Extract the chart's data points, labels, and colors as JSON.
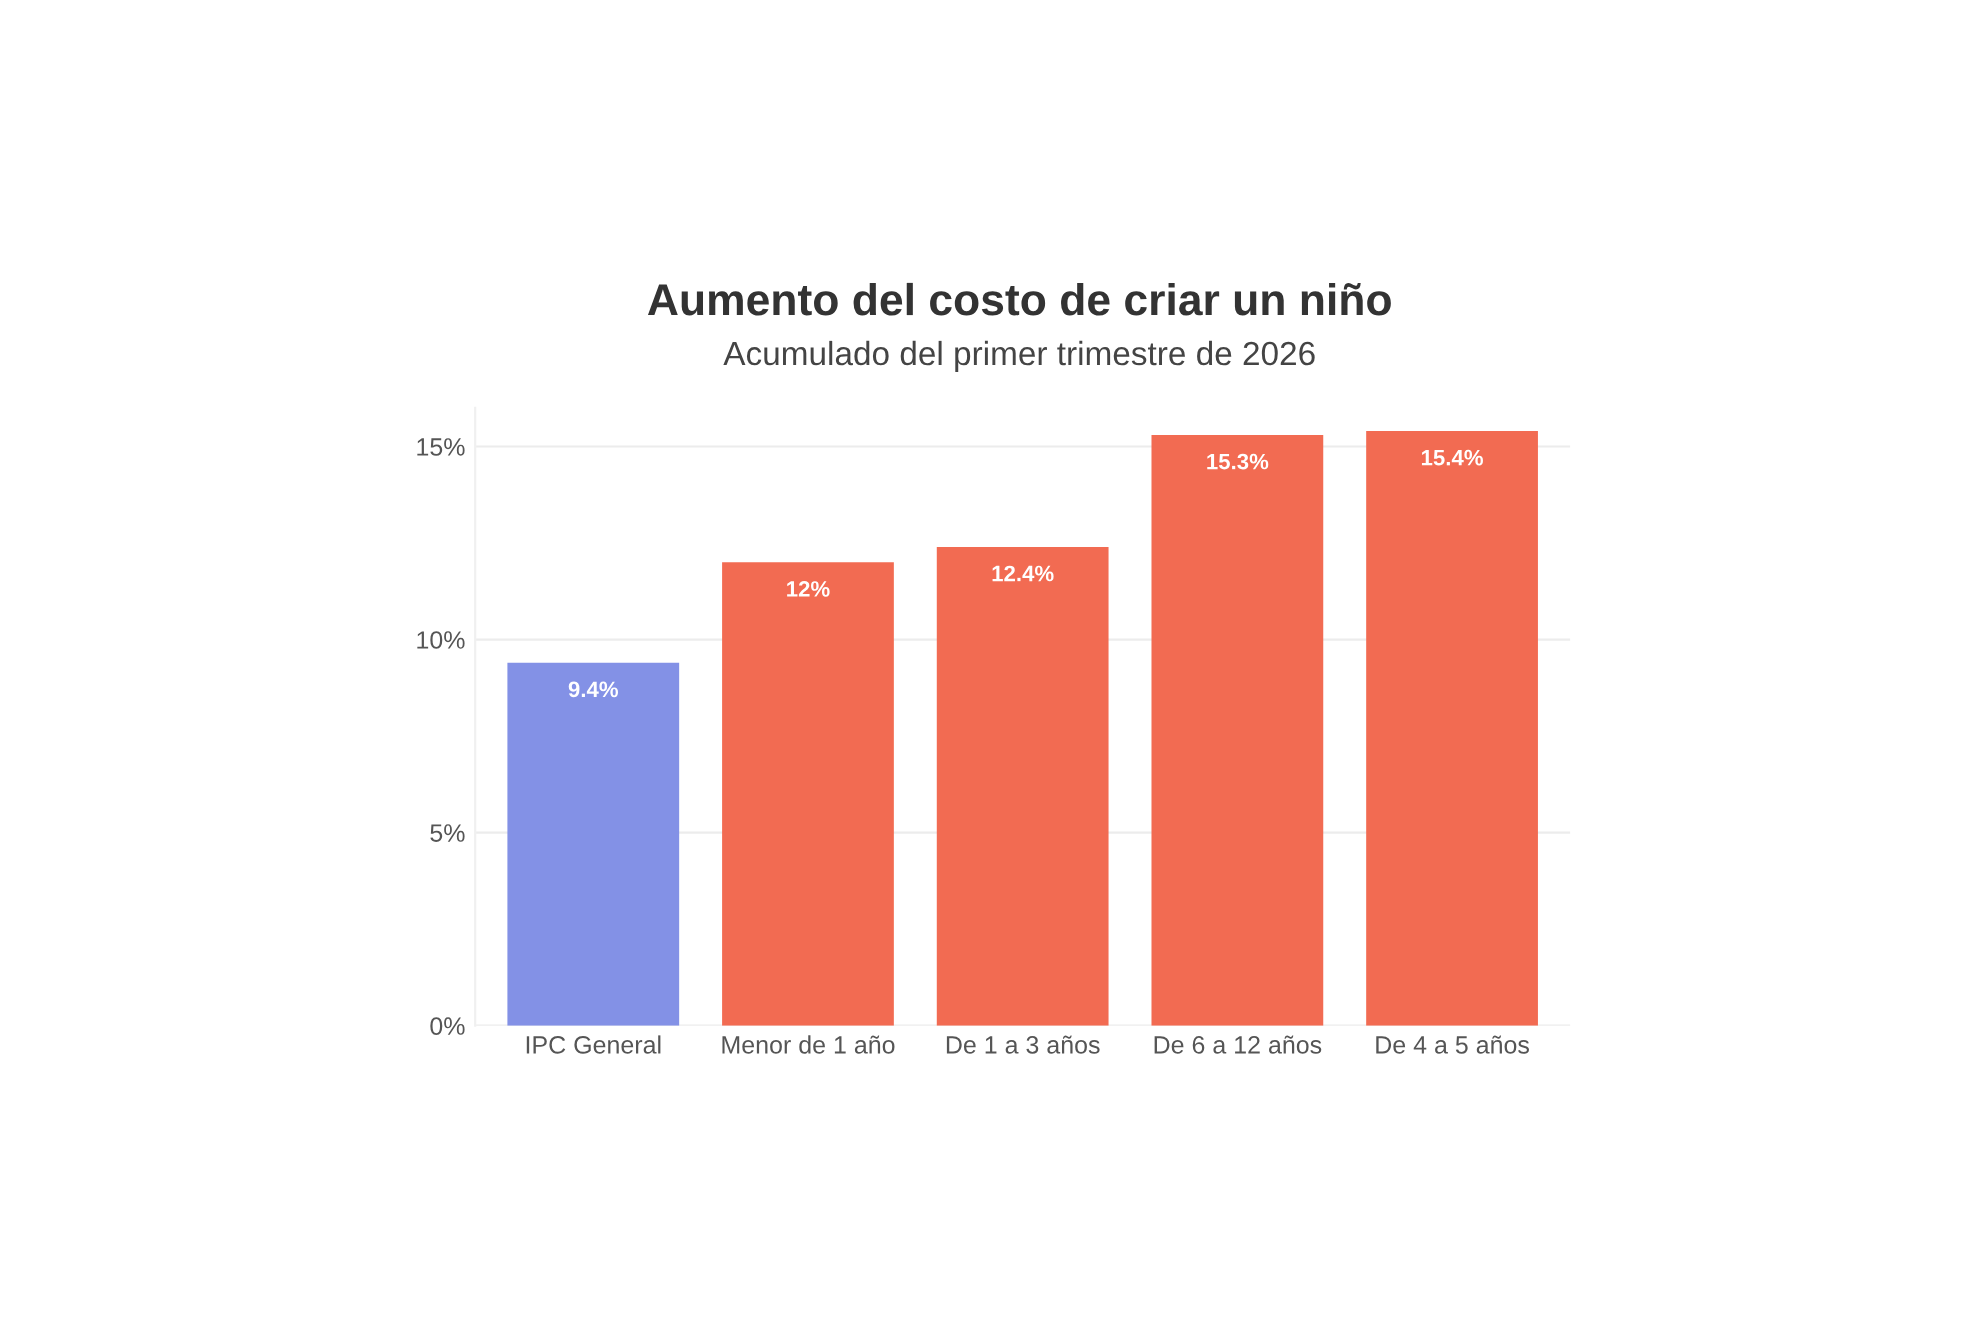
{
  "chart_data": {
    "type": "bar",
    "title": "Aumento del costo de criar un niño",
    "subtitle": "Acumulado del primer trimestre de 2026",
    "categories": [
      "IPC General",
      "Menor de 1 año",
      "De 1 a 3 años",
      "De 6 a 12 años",
      "De 4 a 5 años"
    ],
    "values": [
      9.4,
      12,
      12.4,
      15.3,
      15.4
    ],
    "colors": [
      "#8391e6",
      "#f26b52",
      "#f26b52",
      "#f26b52",
      "#f26b52"
    ],
    "value_labels": [
      "9.4%",
      "12%",
      "12.4%",
      "15.3%",
      "15.4%"
    ],
    "ylim": [
      0,
      16
    ],
    "yticks": [
      {
        "value": 0,
        "label": "0%"
      },
      {
        "value": 5,
        "label": "5%"
      },
      {
        "value": 10,
        "label": "10%"
      },
      {
        "value": 15,
        "label": "15%"
      }
    ],
    "grid": "y"
  }
}
